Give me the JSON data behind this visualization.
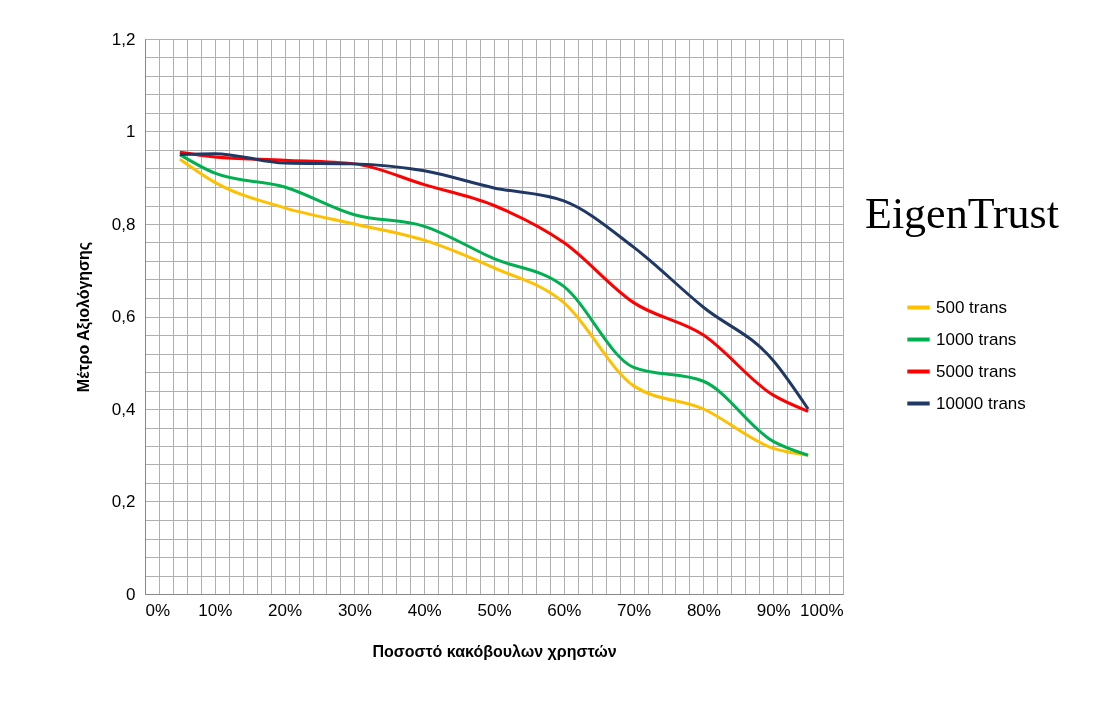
{
  "chart_data": {
    "type": "line",
    "xlabel": "Ποσοστό κακόβουλων χρηστών",
    "ylabel": "Μέτρο Αξιολόγησης",
    "annotations": [
      "EigenTrust"
    ],
    "x": [
      5,
      10,
      20,
      30,
      40,
      50,
      60,
      70,
      80,
      90,
      95
    ],
    "series": [
      {
        "name": "500 trans",
        "color": "#ffc000",
        "values": [
          0.94,
          0.89,
          0.835,
          0.8,
          0.765,
          0.705,
          0.63,
          0.45,
          0.4,
          0.315,
          0.3
        ]
      },
      {
        "name": "1000 trans",
        "color": "#00b050",
        "values": [
          0.95,
          0.91,
          0.88,
          0.82,
          0.795,
          0.725,
          0.665,
          0.49,
          0.46,
          0.33,
          0.3
        ]
      },
      {
        "name": "5000 trans",
        "color": "#ff0000",
        "values": [
          0.955,
          0.945,
          0.938,
          0.93,
          0.885,
          0.84,
          0.76,
          0.63,
          0.56,
          0.43,
          0.395
        ]
      },
      {
        "name": "10000 trans",
        "color": "#1f3864",
        "values": [
          0.95,
          0.952,
          0.932,
          0.93,
          0.915,
          0.878,
          0.85,
          0.75,
          0.62,
          0.505,
          0.4
        ]
      }
    ],
    "xlim": [
      0,
      100
    ],
    "ylim": [
      0,
      1.2
    ],
    "xticks": [
      {
        "value": 0,
        "label": "0%"
      },
      {
        "value": 2,
        "label": null
      },
      {
        "value": 4,
        "label": null
      },
      {
        "value": 6,
        "label": null
      },
      {
        "value": 8,
        "label": null
      },
      {
        "value": 10,
        "label": "10%"
      },
      {
        "value": 12,
        "label": null
      },
      {
        "value": 14,
        "label": null
      },
      {
        "value": 16,
        "label": null
      },
      {
        "value": 18,
        "label": null
      },
      {
        "value": 20,
        "label": "20%"
      },
      {
        "value": 22,
        "label": null
      },
      {
        "value": 24,
        "label": null
      },
      {
        "value": 26,
        "label": null
      },
      {
        "value": 28,
        "label": null
      },
      {
        "value": 30,
        "label": "30%"
      },
      {
        "value": 32,
        "label": null
      },
      {
        "value": 34,
        "label": null
      },
      {
        "value": 36,
        "label": null
      },
      {
        "value": 38,
        "label": null
      },
      {
        "value": 40,
        "label": "40%"
      },
      {
        "value": 42,
        "label": null
      },
      {
        "value": 44,
        "label": null
      },
      {
        "value": 46,
        "label": null
      },
      {
        "value": 48,
        "label": null
      },
      {
        "value": 50,
        "label": "50%"
      },
      {
        "value": 52,
        "label": null
      },
      {
        "value": 54,
        "label": null
      },
      {
        "value": 56,
        "label": null
      },
      {
        "value": 58,
        "label": null
      },
      {
        "value": 60,
        "label": "60%"
      },
      {
        "value": 62,
        "label": null
      },
      {
        "value": 64,
        "label": null
      },
      {
        "value": 66,
        "label": null
      },
      {
        "value": 68,
        "label": null
      },
      {
        "value": 70,
        "label": "70%"
      },
      {
        "value": 72,
        "label": null
      },
      {
        "value": 74,
        "label": null
      },
      {
        "value": 76,
        "label": null
      },
      {
        "value": 78,
        "label": null
      },
      {
        "value": 80,
        "label": "80%"
      },
      {
        "value": 82,
        "label": null
      },
      {
        "value": 84,
        "label": null
      },
      {
        "value": 86,
        "label": null
      },
      {
        "value": 88,
        "label": null
      },
      {
        "value": 90,
        "label": "90%"
      },
      {
        "value": 92,
        "label": null
      },
      {
        "value": 94,
        "label": null
      },
      {
        "value": 96,
        "label": null
      },
      {
        "value": 98,
        "label": null
      },
      {
        "value": 100,
        "label": "100%"
      }
    ],
    "yticks": [
      0,
      {
        "value": 0.04,
        "label": null
      },
      {
        "value": 0.08,
        "label": null
      },
      {
        "value": 0.12,
        "label": null
      },
      {
        "value": 0.16,
        "label": null
      },
      {
        "value": 0.2,
        "label": "0,2"
      },
      {
        "value": 0.24,
        "label": null
      },
      {
        "value": 0.28,
        "label": null
      },
      {
        "value": 0.32,
        "label": null
      },
      {
        "value": 0.36,
        "label": null
      },
      {
        "value": 0.4,
        "label": "0,4"
      },
      {
        "value": 0.44,
        "label": null
      },
      {
        "value": 0.48,
        "label": null
      },
      {
        "value": 0.52,
        "label": null
      },
      {
        "value": 0.56,
        "label": null
      },
      {
        "value": 0.6,
        "label": "0,6"
      },
      {
        "value": 0.64,
        "label": null
      },
      {
        "value": 0.68,
        "label": null
      },
      {
        "value": 0.72,
        "label": null
      },
      {
        "value": 0.76,
        "label": null
      },
      {
        "value": 0.8,
        "label": "0,8"
      },
      {
        "value": 0.84,
        "label": null
      },
      {
        "value": 0.88,
        "label": null
      },
      {
        "value": 0.92,
        "label": null
      },
      {
        "value": 0.96,
        "label": null
      },
      1,
      {
        "value": 1.04,
        "label": null
      },
      {
        "value": 1.08,
        "label": null
      },
      {
        "value": 1.12,
        "label": null
      },
      {
        "value": 1.16,
        "label": null
      },
      {
        "value": 1.2,
        "label": "1,2"
      }
    ],
    "grid": true,
    "legend": "right",
    "marker": "none",
    "line_style": "solid"
  }
}
